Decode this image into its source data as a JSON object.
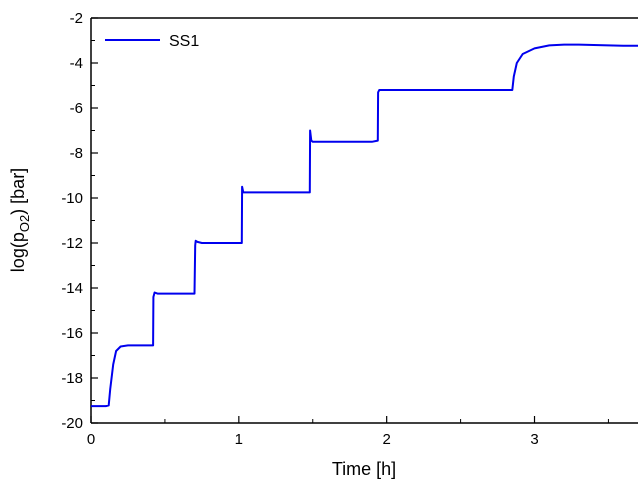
{
  "chart_data": {
    "type": "line",
    "xlabel": "Time [h]",
    "ylabel_parts": {
      "prefix": "log(p",
      "subscript": "O2",
      "suffix": ") [bar]"
    },
    "xlim": [
      0,
      3.7
    ],
    "ylim": [
      -20,
      -2
    ],
    "xticks": [
      0,
      1,
      2,
      3
    ],
    "yticks": [
      -20,
      -18,
      -16,
      -14,
      -12,
      -10,
      -8,
      -6,
      -4,
      -2
    ],
    "legend": {
      "position": "top-left"
    },
    "grid": false,
    "series": [
      {
        "name": "SS1",
        "color": "#0000ee",
        "x": [
          0,
          0.1,
          0.12,
          0.13,
          0.15,
          0.17,
          0.2,
          0.25,
          0.3,
          0.35,
          0.4,
          0.42,
          0.422,
          0.43,
          0.45,
          0.5,
          0.6,
          0.7,
          0.705,
          0.708,
          0.72,
          0.75,
          0.8,
          0.9,
          1.0,
          1.02,
          1.022,
          1.03,
          1.05,
          1.1,
          1.2,
          1.3,
          1.4,
          1.48,
          1.482,
          1.49,
          1.5,
          1.6,
          1.7,
          1.8,
          1.9,
          1.94,
          1.942,
          1.95,
          1.97,
          2.0,
          2.2,
          2.4,
          2.6,
          2.8,
          2.85,
          2.86,
          2.88,
          2.92,
          3.0,
          3.1,
          3.2,
          3.3,
          3.4,
          3.5,
          3.6,
          3.7
        ],
        "y": [
          -19.25,
          -19.25,
          -19.22,
          -18.5,
          -17.4,
          -16.8,
          -16.6,
          -16.55,
          -16.55,
          -16.55,
          -16.55,
          -16.55,
          -14.4,
          -14.2,
          -14.25,
          -14.25,
          -14.25,
          -14.25,
          -12.1,
          -11.9,
          -11.95,
          -12.0,
          -12.0,
          -12.0,
          -12.0,
          -12.0,
          -9.5,
          -9.75,
          -9.75,
          -9.75,
          -9.75,
          -9.75,
          -9.75,
          -9.75,
          -7.0,
          -7.45,
          -7.5,
          -7.5,
          -7.5,
          -7.5,
          -7.5,
          -7.45,
          -5.3,
          -5.2,
          -5.2,
          -5.2,
          -5.2,
          -5.2,
          -5.2,
          -5.2,
          -5.2,
          -4.6,
          -4.0,
          -3.6,
          -3.35,
          -3.22,
          -3.18,
          -3.18,
          -3.2,
          -3.22,
          -3.23,
          -3.23
        ]
      }
    ]
  }
}
